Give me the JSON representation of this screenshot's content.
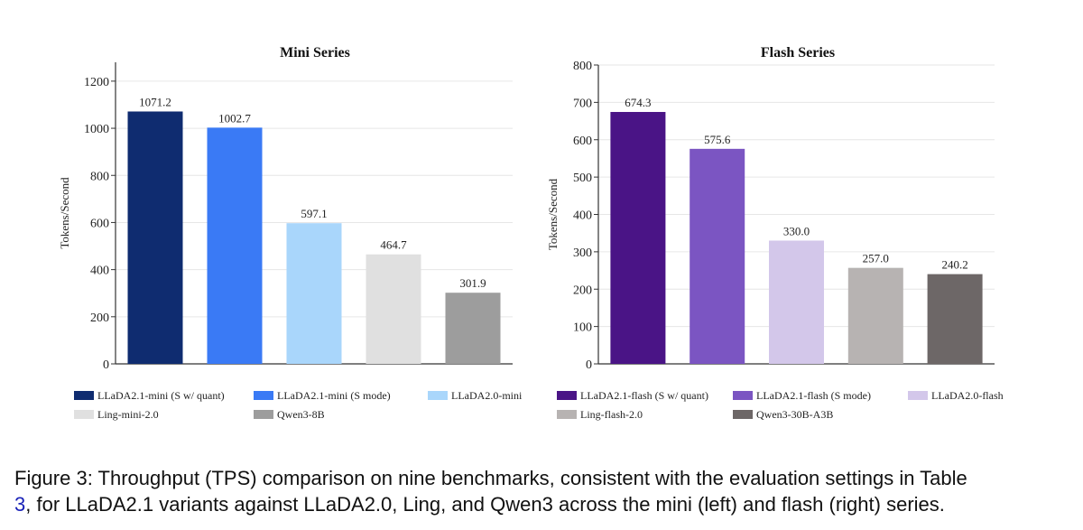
{
  "chart_data": [
    {
      "type": "bar",
      "title": "Mini Series",
      "ylabel": "Tokens/Second",
      "xlabel": "",
      "ylim": [
        0,
        1280
      ],
      "yticks": [
        0,
        200,
        400,
        600,
        800,
        1000,
        1200
      ],
      "grid": true,
      "categories": [
        "LLaDA2.1-mini (S w/ quant)",
        "LLaDA2.1-mini (S mode)",
        "LLaDA2.0-mini",
        "Ling-mini-2.0",
        "Qwen3-8B"
      ],
      "values": [
        1071.2,
        1002.7,
        597.1,
        464.7,
        301.9
      ],
      "value_labels": [
        "1071.2",
        "1002.7",
        "597.1",
        "464.7",
        "301.9"
      ],
      "colors": [
        "#0f2c70",
        "#3a7af5",
        "#a9d6fb",
        "#e0e0e0",
        "#9d9d9d"
      ],
      "legend_position": "bottom"
    },
    {
      "type": "bar",
      "title": "Flash Series",
      "ylabel": "Tokens/Second",
      "xlabel": "",
      "ylim": [
        0,
        800
      ],
      "yticks": [
        0,
        100,
        200,
        300,
        400,
        500,
        600,
        700,
        800
      ],
      "grid": true,
      "categories": [
        "LLaDA2.1-flash (S w/ quant)",
        "LLaDA2.1-flash (S mode)",
        "LLaDA2.0-flash",
        "Ling-flash-2.0",
        "Qwen3-30B-A3B"
      ],
      "values": [
        674.3,
        575.6,
        330.0,
        257.0,
        240.2
      ],
      "value_labels": [
        "674.3",
        "575.6",
        "330.0",
        "257.0",
        "240.2"
      ],
      "colors": [
        "#4a1486",
        "#7b55c2",
        "#d3c7ea",
        "#b7b3b2",
        "#6d6767"
      ],
      "legend_position": "bottom"
    }
  ],
  "caption": {
    "prefix": "Figure 3: Throughput (TPS) comparison on nine benchmarks, consistent with the evaluation settings in Table",
    "ref": "3",
    "suffix": ", for LLaDA2.1 variants against LLaDA2.0, Ling, and Qwen3 across the mini (left) and flash (right) series."
  }
}
